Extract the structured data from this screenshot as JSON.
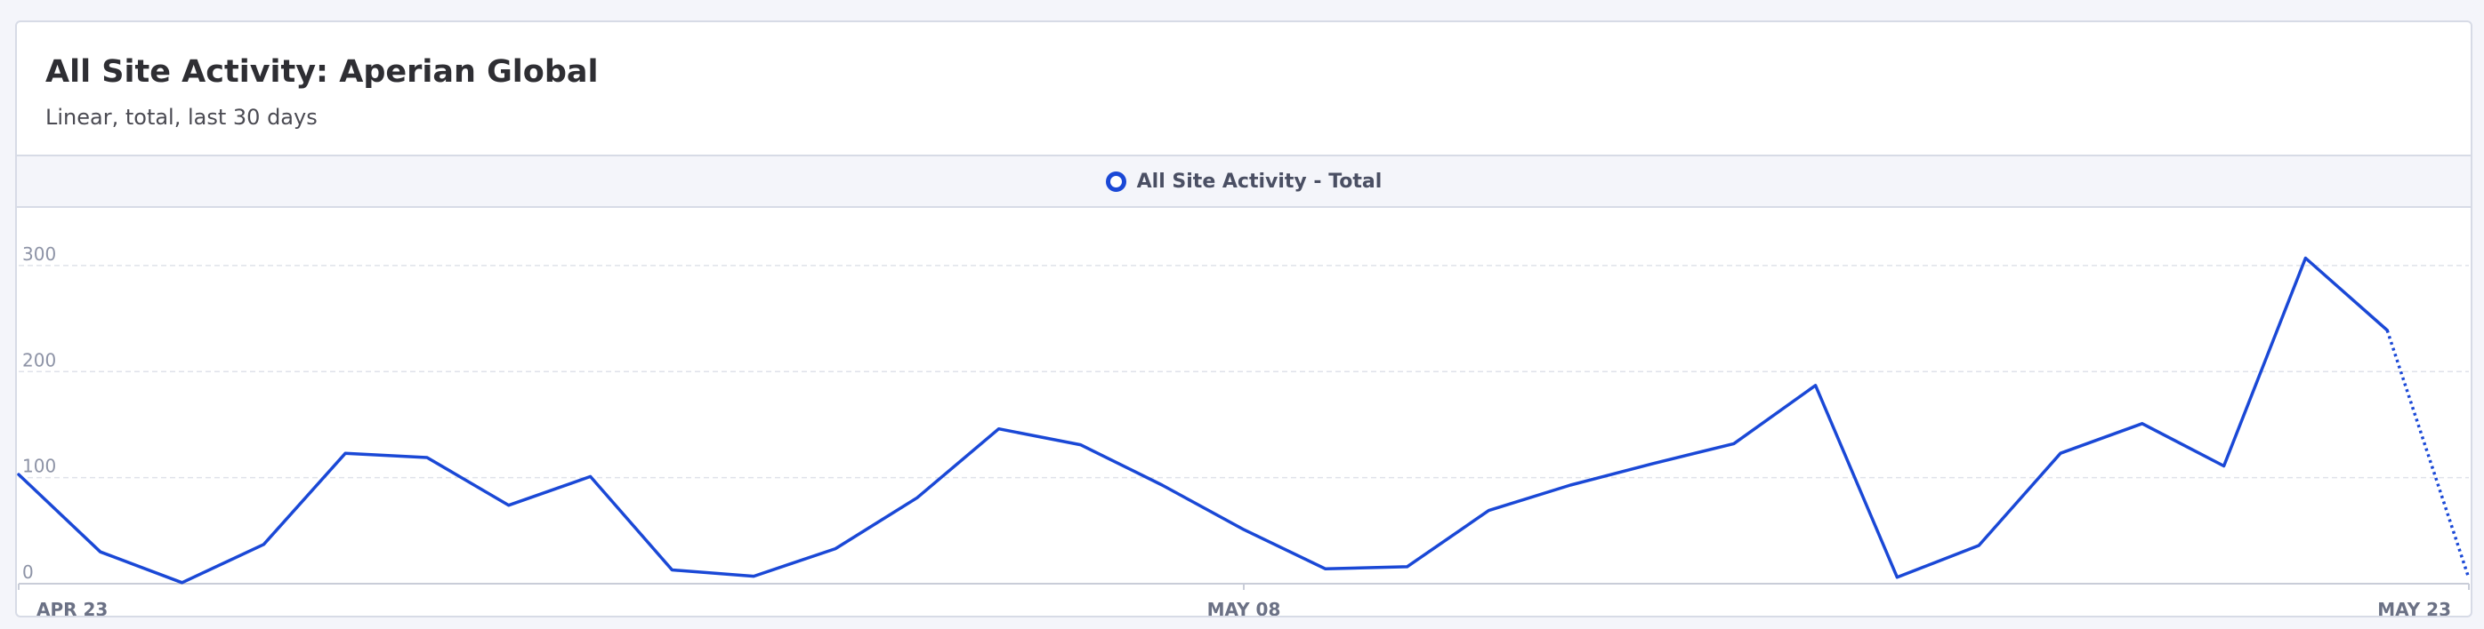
{
  "card": {
    "title": "All Site Activity: Aperian Global",
    "subtitle": "Linear, total, last 30 days"
  },
  "chart_data": {
    "type": "line",
    "title": "All Site Activity: Aperian Global",
    "subtitle": "Linear, total, last 30 days",
    "xlabel": "",
    "ylabel": "",
    "x_tick_labels": [
      "APR 23",
      "MAY 08",
      "MAY 23"
    ],
    "y_ticks": [
      0,
      100,
      200,
      300
    ],
    "ylim": [
      0,
      315
    ],
    "grid": true,
    "legend_position": "top-center",
    "series": [
      {
        "name": "All Site Activity - Total",
        "color": "#1a48d6",
        "x": [
          "Apr 23",
          "Apr 24",
          "Apr 25",
          "Apr 26",
          "Apr 27",
          "Apr 28",
          "Apr 29",
          "Apr 30",
          "May 01",
          "May 02",
          "May 03",
          "May 04",
          "May 05",
          "May 06",
          "May 07",
          "May 08",
          "May 09",
          "May 10",
          "May 11",
          "May 12",
          "May 13",
          "May 14",
          "May 15",
          "May 16",
          "May 17",
          "May 18",
          "May 19",
          "May 20",
          "May 21",
          "May 22",
          "May 23"
        ],
        "values": [
          103,
          30,
          1,
          37,
          123,
          119,
          74,
          101,
          13,
          7,
          33,
          81,
          146,
          131,
          93,
          51,
          14,
          16,
          69,
          93,
          113,
          132,
          187,
          6,
          36,
          123,
          151,
          111,
          307,
          239,
          5
        ],
        "dotted_last_segment": true
      }
    ]
  }
}
